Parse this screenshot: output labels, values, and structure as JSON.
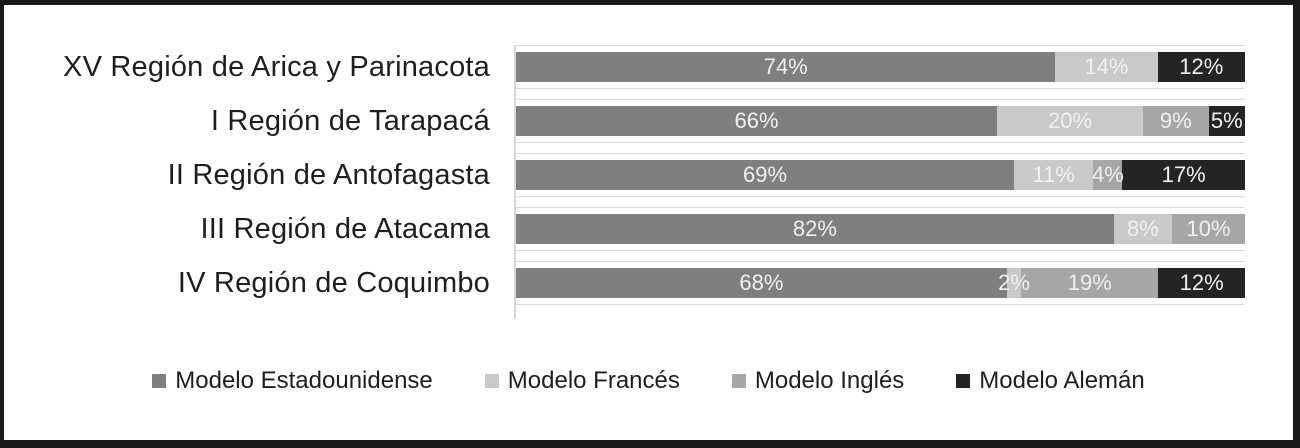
{
  "chart_data": {
    "type": "bar",
    "orientation": "horizontal-stacked",
    "title": "",
    "xlabel": "",
    "ylabel": "",
    "value_label_suffix": "%",
    "axis_range": [
      0,
      100
    ],
    "grid": "category-row-lines",
    "legend_position": "bottom-center",
    "categories": [
      "XV Región de Arica y Parinacota",
      "I Región de Tarapacá",
      "II Región de Antofagasta",
      "III Región de Atacama",
      "IV Región de Coquimbo"
    ],
    "series": [
      {
        "name": "Modelo Estadounidense",
        "color": "#7f7f7f",
        "values": [
          74,
          66,
          69,
          82,
          68
        ]
      },
      {
        "name": "Modelo Francés",
        "color": "#c9c9c9",
        "values": [
          14,
          20,
          11,
          8,
          2
        ]
      },
      {
        "name": "Modelo Inglés",
        "color": "#a6a6a6",
        "values": [
          0,
          9,
          4,
          10,
          19
        ]
      },
      {
        "name": "Modelo Alemán",
        "color": "#242424",
        "values": [
          12,
          5,
          17,
          0,
          12
        ]
      }
    ]
  },
  "colors": {
    "frame_border": "#1a1a1a",
    "gridline": "#d9d9d9",
    "axis_line": "#d9d9d9",
    "category_text": "#1e1e1e",
    "data_label_text": "#f0f0f0",
    "background": "#ffffff"
  }
}
